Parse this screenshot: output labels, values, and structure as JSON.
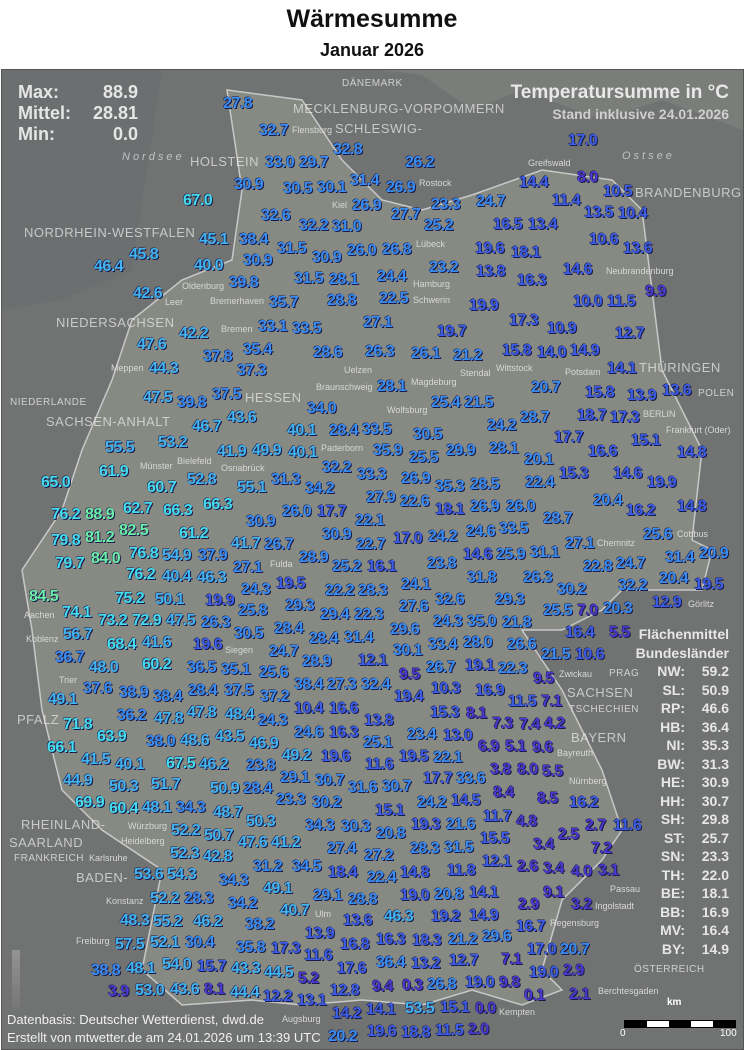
{
  "header": {
    "title": "Wärmesumme",
    "subtitle": "Januar 2026"
  },
  "stats": {
    "max_label": "Max:",
    "max": "88.9",
    "mean_label": "Mittel:",
    "mean": "28.81",
    "min_label": "Min:",
    "min": "0.0"
  },
  "info": {
    "unit_title": "Temperatursumme in °C",
    "stand": "Stand inklusive 24.01.2026"
  },
  "legend": {
    "title1": "Flächenmittel",
    "title2": "Bundesländer",
    "rows": [
      {
        "state": "NW:",
        "value": "59.2"
      },
      {
        "state": "SL:",
        "value": "50.9"
      },
      {
        "state": "RP:",
        "value": "46.6"
      },
      {
        "state": "HB:",
        "value": "36.4"
      },
      {
        "state": "NI:",
        "value": "35.3"
      },
      {
        "state": "BW:",
        "value": "31.3"
      },
      {
        "state": "HE:",
        "value": "30.9"
      },
      {
        "state": "HH:",
        "value": "30.7"
      },
      {
        "state": "SH:",
        "value": "29.8"
      },
      {
        "state": "ST:",
        "value": "25.7"
      },
      {
        "state": "SN:",
        "value": "23.3"
      },
      {
        "state": "TH:",
        "value": "22.0"
      },
      {
        "state": "BE:",
        "value": "18.1"
      },
      {
        "state": "BB:",
        "value": "16.9"
      },
      {
        "state": "MV:",
        "value": "16.4"
      },
      {
        "state": "BY:",
        "value": "14.9"
      }
    ]
  },
  "map_labels": {
    "countries": [
      "DÄNEMARK",
      "NIEDERLANDE",
      "POLEN",
      "FRANKREICH",
      "ÖSTERREICH",
      "TSCHECHIEN",
      "PRAG"
    ],
    "seas": [
      "Nordsee",
      "Ostsee"
    ],
    "states": [
      "SCHLESWIG-",
      "HOLSTEIN",
      "MECKLENBURG-VORPOMMERN",
      "NIEDERSACHSEN",
      "BRANDENBURG",
      "SACHSEN-ANHALT",
      "NORDRHEIN-WESTFALEN",
      "SACHSEN",
      "THÜRINGEN",
      "HESSEN",
      "RHEINLAND-",
      "PFALZ",
      "SAARLAND",
      "BAYERN",
      "BADEN-"
    ],
    "cities": [
      "Flensburg",
      "Kiel",
      "Lübeck",
      "Rostock",
      "Greifswald",
      "Hamburg",
      "Schwerin",
      "Bremerhaven",
      "Bremen",
      "Neubrandenburg",
      "Leer",
      "Oldenburg",
      "Meppen",
      "Uelzen",
      "Wittstock",
      "Stendal",
      "Wolfsburg",
      "Potsdam",
      "BERLIN",
      "Frankfurt (Oder)",
      "Osnabrück",
      "Bielefeld",
      "Braunschweig",
      "Magdeburg",
      "Münster",
      "Paderborn",
      "Cottbus",
      "Görlitz",
      "Aachen",
      "Siegen",
      "Chemnitz",
      "Zwickau",
      "Fulda",
      "Trier",
      "Koblenz",
      "Würzburg",
      "Bayreuth",
      "Nürnberg",
      "Regensburg",
      "Passau",
      "Ingolstadt",
      "Heidelberg",
      "Karlsruhe",
      "Augsburg",
      "Ulm",
      "Freiburg",
      "Konstanz",
      "Kempten",
      "Berchtesgaden"
    ]
  },
  "colors": {
    "scale_lowest": "#4b3ad0",
    "scale_low": "#3c5ee6",
    "scale_mid": "#3a8df0",
    "scale_high": "#42b4f0",
    "scale_higher": "#44dcef",
    "scale_highest": "#6cf0a8"
  },
  "stations": [
    "27.8",
    "32.7",
    "32.8",
    "33.0",
    "29.7",
    "26.2",
    "17.0",
    "8.0",
    "14.4",
    "11.4",
    "10.5",
    "30.9",
    "30.5",
    "30.1",
    "31.4",
    "26.9",
    "67.0",
    "26.9",
    "24.7",
    "16.5",
    "13.4",
    "13.5",
    "10.4",
    "27.7",
    "25.2",
    "23.3",
    "32.6",
    "32.2",
    "31.0",
    "26.0",
    "45.1",
    "38.4",
    "31.5",
    "26.8",
    "19.6",
    "18.1",
    "10.6",
    "13.6",
    "45.8",
    "46.4",
    "40.0",
    "30.9",
    "30.9",
    "28.1",
    "23.2",
    "13.8",
    "14.6",
    "16.3",
    "39.8",
    "31.5",
    "24.4",
    "42.6",
    "35.7",
    "28.8",
    "22.5",
    "19.9",
    "10.0",
    "11.5",
    "9.9",
    "33.1",
    "27.1",
    "17.3",
    "10.9",
    "42.2",
    "33.5",
    "35.4",
    "19.7",
    "12.7",
    "47.6",
    "37.8",
    "28.6",
    "26.3",
    "26.1",
    "21.2",
    "15.8",
    "14.0",
    "14.9",
    "37.3",
    "44.3",
    "14.1",
    "28.1",
    "20.7",
    "15.8",
    "47.5",
    "39.8",
    "37.5",
    "13.9",
    "13.6",
    "43.6",
    "25.4",
    "21.5",
    "18.7",
    "34.0",
    "46.7",
    "40.1",
    "28.4",
    "33.5",
    "24.2",
    "28.7",
    "17.7",
    "17.3",
    "30.5",
    "28.1",
    "15.1",
    "55.5",
    "53.2",
    "41.9",
    "49.9",
    "25.5",
    "29.9",
    "20.1",
    "16.6",
    "14.8",
    "40.1",
    "26.9",
    "32.2",
    "61.9",
    "33.3",
    "35.9",
    "14.6",
    "22.4",
    "15.3",
    "65.0",
    "52.8",
    "31.3",
    "34.2",
    "60.7",
    "55.1",
    "27.9",
    "35.3",
    "28.5",
    "19.9",
    "17.7",
    "22.6",
    "18.1",
    "26.9",
    "26.0",
    "33.5",
    "20.4",
    "66.3",
    "62.7",
    "66.3",
    "26.0",
    "22.1",
    "16.2",
    "14.8",
    "76.2",
    "88.9",
    "82.5",
    "61.2",
    "30.9",
    "30.9",
    "28.7",
    "25.6",
    "81.2",
    "41.7",
    "24.6",
    "79.8",
    "84.0",
    "76.8",
    "26.7",
    "22.7",
    "17.0",
    "24.2",
    "14.6",
    "25.9",
    "31.1",
    "27.1",
    "28.9",
    "76.2",
    "54.9",
    "37.9",
    "31.4",
    "20.9",
    "79.7",
    "27.1",
    "25.2",
    "16.1",
    "23.8",
    "31.8",
    "22.8",
    "24.7",
    "40.4",
    "46.3",
    "26.3",
    "30.2",
    "32.2",
    "20.4",
    "50.1",
    "24.3",
    "22.2",
    "28.3",
    "24.1",
    "29.3",
    "12.9",
    "19.5",
    "19.9",
    "19.5",
    "27.6",
    "32.6",
    "20.3",
    "84.5",
    "75.2",
    "25.8",
    "29.3",
    "29.4",
    "22.3",
    "29.6",
    "24.3",
    "35.0",
    "21.8",
    "25.5",
    "5.5",
    "74.1",
    "73.2",
    "72.9",
    "47.5",
    "28.4",
    "28.4",
    "30.1",
    "33.4",
    "28.0",
    "26.6",
    "16.4",
    "7.0",
    "26.3",
    "30.5",
    "31.4",
    "12.1",
    "26.7",
    "19.1",
    "22.3",
    "21.5",
    "56.7",
    "68.4",
    "41.6",
    "19.6",
    "24.7",
    "28.9",
    "27.3",
    "32.4",
    "9.5",
    "19.4",
    "10.3",
    "16.9",
    "10.6",
    "9.5",
    "60.2",
    "38.4",
    "36.5",
    "36.7",
    "48.0",
    "16.6",
    "25.6",
    "15.3",
    "11.5",
    "7.1",
    "35.1",
    "37.5",
    "37.2",
    "10.4",
    "13.8",
    "8.1",
    "7.3",
    "37.6",
    "28.4",
    "48.4",
    "38.9",
    "38.4",
    "36.2",
    "49.1",
    "47.8",
    "43.5",
    "24.3",
    "24.6",
    "16.3",
    "19.6",
    "25.1",
    "23.4",
    "13.0",
    "7.4",
    "6.9",
    "46.9",
    "49.2",
    "47.8",
    "11.6",
    "19.5",
    "5.1",
    "4.2",
    "71.8",
    "63.9",
    "48.6",
    "23.8",
    "30.7",
    "31.6",
    "66.1",
    "41.5",
    "38.0",
    "46.2",
    "28.4",
    "22.1",
    "17.7",
    "9.6",
    "29.1",
    "40.1",
    "67.5",
    "50.9",
    "23.3",
    "30.7",
    "15.1",
    "24.2",
    "33.6",
    "3.8",
    "8.0",
    "5.5",
    "30.2",
    "51.7",
    "34.3",
    "30.3",
    "14.5",
    "50.3",
    "44.9",
    "69.9",
    "60.4",
    "34.3",
    "8.4",
    "48.7",
    "50.3",
    "48.1",
    "41.2",
    "27.4",
    "20.8",
    "19.3",
    "21.6",
    "11.7",
    "8.5",
    "16.2",
    "2.7",
    "47.6",
    "52.2",
    "34.5",
    "28.3",
    "4.8",
    "50.7",
    "42.8",
    "31.2",
    "18.4",
    "27.2",
    "31.5",
    "15.5",
    "3.4",
    "2.5",
    "7.2",
    "11.6",
    "49.1",
    "22.4",
    "14.8",
    "11.8",
    "52.3",
    "34.3",
    "29.1",
    "19.0",
    "12.1",
    "2.6",
    "54.3",
    "34.2",
    "40.7",
    "28.8",
    "3.4",
    "4.0",
    "28.3",
    "52.2",
    "46.3",
    "13.6",
    "3.1",
    "46.2",
    "53.6",
    "38.2",
    "13.9",
    "16.8",
    "16.3",
    "20.8",
    "19.2",
    "14.1",
    "14.9",
    "9.1",
    "55.2",
    "17.3",
    "35.8",
    "30.4",
    "18.3",
    "2.9",
    "3.2",
    "43.3",
    "52.1",
    "15.7",
    "44.5",
    "11.6",
    "21.2",
    "29.6",
    "16.7",
    "48.3",
    "54.0",
    "57.5",
    "8.1",
    "5.2",
    "12.7",
    "17.0",
    "7.1",
    "48.1",
    "17.6",
    "12.2",
    "36.4",
    "13.2",
    "26.8",
    "19.0",
    "19.0",
    "53.0",
    "43.6",
    "20.7",
    "2.9",
    "13.1",
    "12.8",
    "9.4",
    "14.1",
    "53.5",
    "44.4",
    "3.9",
    "14.2",
    "20.2",
    "15.1",
    "19.6",
    "9.8",
    "0.1",
    "2.1",
    "38.8",
    "18.8",
    "0.3",
    "11.5",
    "2.0",
    "0.0"
  ],
  "scale": {
    "unit": "km",
    "start": "0",
    "end": "100"
  },
  "footer": {
    "source": "Datenbasis: Deutscher Wetterdienst, dwd.de",
    "created": "Erstellt von mtwetter.de am 24.01.2026 um 13:39 UTC"
  }
}
